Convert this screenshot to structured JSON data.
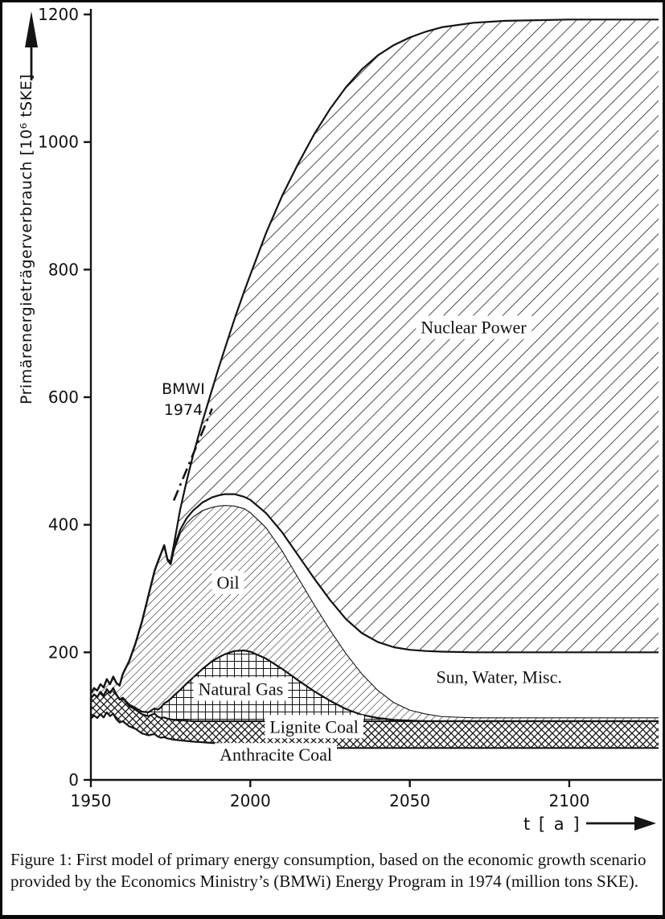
{
  "figure": {
    "caption": "Figure 1: First model of primary energy consumption, based on the economic growth scenario provided by the Economics Ministry’s (BMWi) Energy Program in 1974 (million tons SKE)."
  },
  "chart_data": {
    "type": "area",
    "stacked": true,
    "title": "",
    "xlabel": "t [ a ]",
    "ylabel": "Primärenergieträgerverbrauch [10⁶ tSKE]",
    "xlim": [
      1950,
      2128
    ],
    "ylim": [
      0,
      1200
    ],
    "x_ticks": [
      1950,
      2000,
      2050,
      2100
    ],
    "y_ticks": [
      0,
      200,
      400,
      600,
      800,
      1000,
      1200
    ],
    "grid": false,
    "legend": "labels-inside-areas",
    "x": [
      1950,
      1951,
      1952,
      1953,
      1954,
      1955,
      1956,
      1957,
      1958,
      1959,
      1960,
      1962,
      1964,
      1966,
      1968,
      1970,
      1971,
      1972,
      1973,
      1974,
      1975,
      1976,
      1978,
      1980,
      1982,
      1985,
      1988,
      1990,
      1992,
      1995,
      1998,
      2000,
      2005,
      2010,
      2015,
      2020,
      2025,
      2030,
      2035,
      2040,
      2045,
      2050,
      2055,
      2060,
      2070,
      2080,
      2090,
      2100,
      2110,
      2120,
      2128
    ],
    "series": [
      {
        "name": "Anthracite Coal",
        "pattern": "plain",
        "cumulative_top": [
          96,
          101,
          97,
          103,
          98,
          106,
          100,
          104,
          95,
          90,
          92,
          84,
          80,
          73,
          70,
          72,
          68,
          66,
          67,
          65,
          64,
          63,
          62,
          61,
          60,
          59,
          58,
          57,
          56,
          55,
          55,
          54,
          53,
          52,
          51,
          50,
          50,
          50,
          50,
          50,
          50,
          50,
          50,
          50,
          50,
          50,
          50,
          50,
          50,
          50,
          50
        ]
      },
      {
        "name": "Lignite Coal",
        "pattern": "crosshatch",
        "cumulative_top": [
          128,
          134,
          130,
          138,
          132,
          142,
          136,
          144,
          134,
          126,
          128,
          116,
          110,
          103,
          100,
          104,
          99,
          97,
          98,
          96,
          95,
          94,
          93,
          93,
          92,
          92,
          92,
          92,
          92,
          92,
          92,
          92,
          92,
          92,
          92,
          92,
          92,
          92,
          92,
          92,
          92,
          92,
          92,
          92,
          92,
          92,
          92,
          92,
          92,
          92,
          92
        ]
      },
      {
        "name": "Natural Gas",
        "pattern": "grid",
        "cumulative_top": [
          128,
          134,
          130,
          138,
          132,
          142,
          136,
          144,
          134,
          126,
          129,
          118,
          113,
          107,
          106,
          112,
          110,
          114,
          120,
          123,
          127,
          132,
          141,
          151,
          160,
          174,
          186,
          192,
          197,
          202,
          203,
          201,
          190,
          174,
          156,
          139,
          124,
          111,
          102,
          97,
          94,
          93,
          92,
          92,
          92,
          92,
          92,
          92,
          92,
          92,
          92
        ]
      },
      {
        "name": "Oil",
        "pattern": "diagonal-fine",
        "cumulative_top": [
          136,
          144,
          140,
          150,
          145,
          158,
          150,
          162,
          152,
          148,
          166,
          186,
          214,
          248,
          288,
          328,
          342,
          355,
          368,
          345,
          338,
          360,
          388,
          403,
          413,
          423,
          428,
          430,
          431,
          430,
          426,
          420,
          396,
          360,
          318,
          276,
          236,
          199,
          167,
          141,
          122,
          110,
          104,
          100,
          98,
          98,
          98,
          98,
          98,
          98,
          98
        ]
      },
      {
        "name": "Sun, Water, Misc.",
        "pattern": "plain",
        "cumulative_top": [
          136,
          144,
          140,
          150,
          145,
          158,
          150,
          162,
          152,
          148,
          166,
          186,
          214,
          248,
          288,
          328,
          342,
          355,
          368,
          346,
          340,
          363,
          392,
          410,
          422,
          435,
          443,
          446,
          448,
          448,
          444,
          439,
          418,
          388,
          352,
          316,
          282,
          252,
          230,
          216,
          208,
          204,
          202,
          201,
          200,
          200,
          200,
          200,
          200,
          200,
          200
        ]
      },
      {
        "name": "Nuclear Power",
        "pattern": "diagonal-coarse",
        "cumulative_top": [
          136,
          144,
          140,
          150,
          145,
          158,
          150,
          162,
          152,
          148,
          166,
          186,
          214,
          248,
          288,
          328,
          342,
          355,
          368,
          346,
          342,
          368,
          424,
          468,
          508,
          562,
          612,
          645,
          676,
          722,
          765,
          792,
          858,
          916,
          966,
          1012,
          1052,
          1086,
          1114,
          1136,
          1152,
          1164,
          1173,
          1180,
          1187,
          1190,
          1191,
          1192,
          1192,
          1192,
          1192
        ]
      }
    ],
    "area_labels": [
      {
        "text": "Nuclear Power",
        "x": 2070,
        "y": 700
      },
      {
        "text": "Oil",
        "x": 1993,
        "y": 300
      },
      {
        "text": "Natural Gas",
        "x": 1997,
        "y": 133
      },
      {
        "text": "Sun, Water, Misc.",
        "x": 2078,
        "y": 152
      },
      {
        "text": "Lignite Coal",
        "x": 2020,
        "y": 74
      },
      {
        "text": "Anthracite Coal",
        "x": 2008,
        "y": 30
      }
    ],
    "annotation": {
      "lines": [
        "BMWI",
        "1974"
      ],
      "x": 1979,
      "y": 605,
      "line": {
        "x1": 1976,
        "y1": 438,
        "x2": 1988,
        "y2": 582,
        "style": "dash-dot"
      }
    },
    "colors": {
      "ink": "#141414",
      "background": "#ffffff"
    }
  }
}
